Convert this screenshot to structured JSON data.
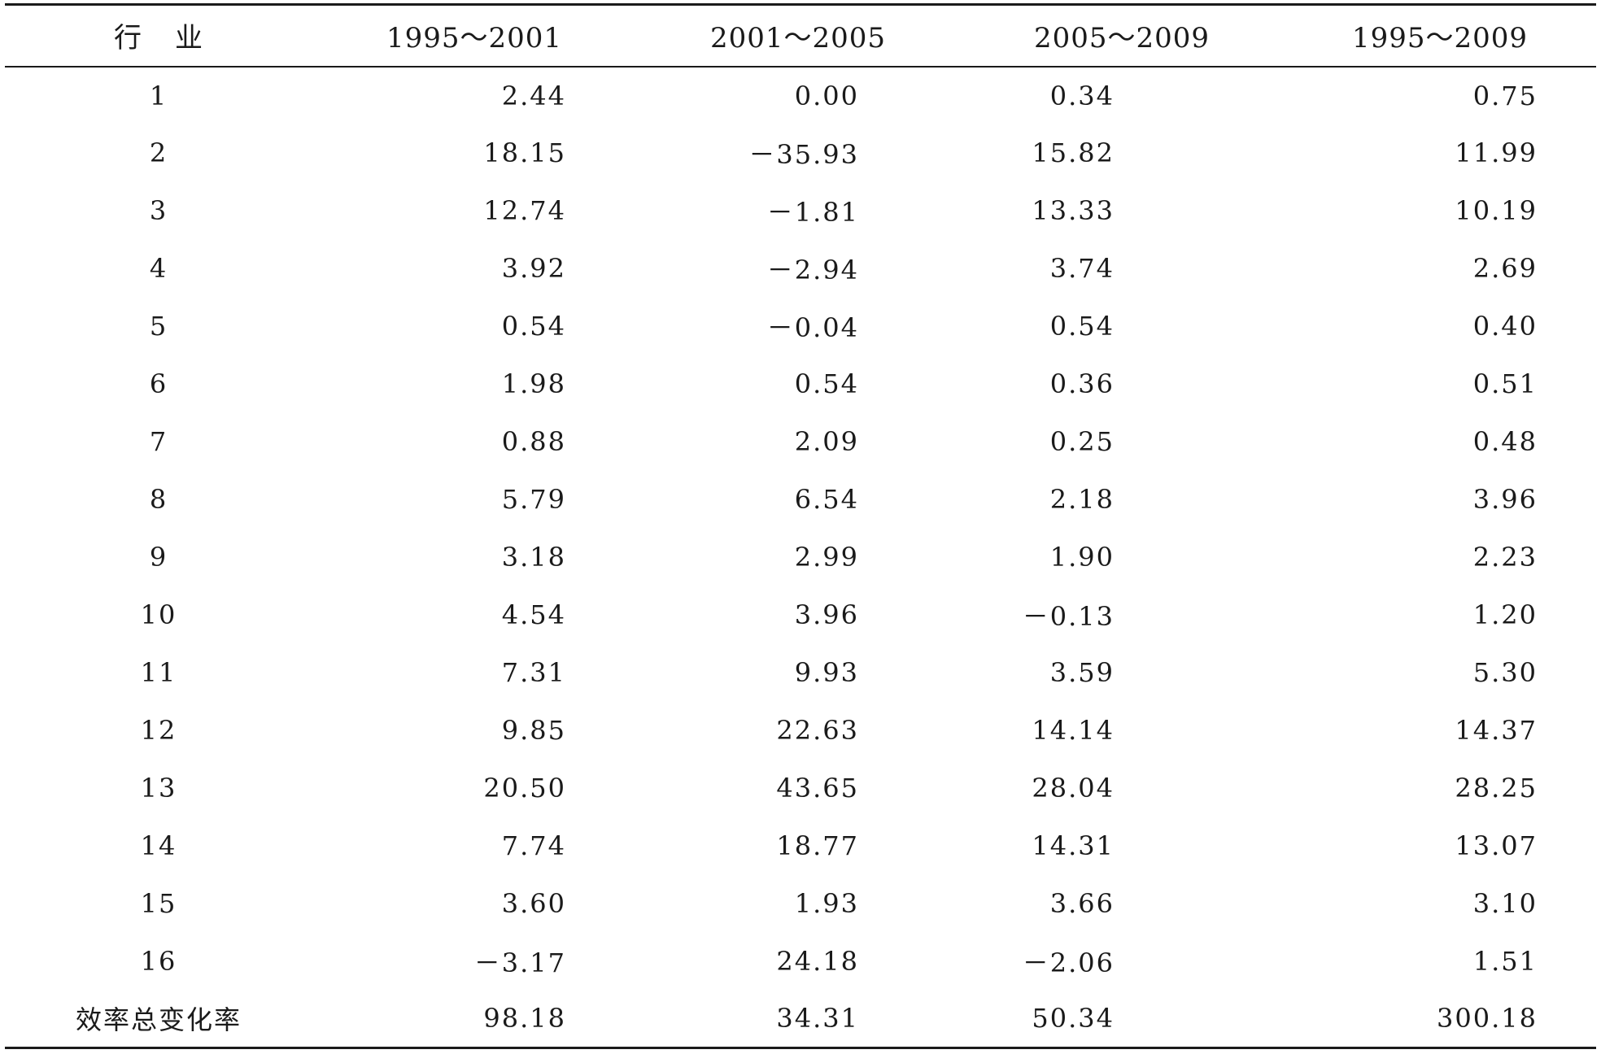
{
  "table": {
    "headers": [
      "行业",
      "1995～2001",
      "2001～2005",
      "2005～2009",
      "1995～2009"
    ],
    "header_industry_chars": [
      "行",
      "业"
    ],
    "rows": [
      {
        "industry": "1",
        "v": [
          "2.44",
          "0.00",
          "0.34",
          "0.75"
        ]
      },
      {
        "industry": "2",
        "v": [
          "18.15",
          "－35.93",
          "15.82",
          "11.99"
        ]
      },
      {
        "industry": "3",
        "v": [
          "12.74",
          "－1.81",
          "13.33",
          "10.19"
        ]
      },
      {
        "industry": "4",
        "v": [
          "3.92",
          "－2.94",
          "3.74",
          "2.69"
        ]
      },
      {
        "industry": "5",
        "v": [
          "0.54",
          "－0.04",
          "0.54",
          "0.40"
        ]
      },
      {
        "industry": "6",
        "v": [
          "1.98",
          "0.54",
          "0.36",
          "0.51"
        ]
      },
      {
        "industry": "7",
        "v": [
          "0.88",
          "2.09",
          "0.25",
          "0.48"
        ]
      },
      {
        "industry": "8",
        "v": [
          "5.79",
          "6.54",
          "2.18",
          "3.96"
        ]
      },
      {
        "industry": "9",
        "v": [
          "3.18",
          "2.99",
          "1.90",
          "2.23"
        ]
      },
      {
        "industry": "10",
        "v": [
          "4.54",
          "3.96",
          "－0.13",
          "1.20"
        ]
      },
      {
        "industry": "11",
        "v": [
          "7.31",
          "9.93",
          "3.59",
          "5.30"
        ]
      },
      {
        "industry": "12",
        "v": [
          "9.85",
          "22.63",
          "14.14",
          "14.37"
        ]
      },
      {
        "industry": "13",
        "v": [
          "20.50",
          "43.65",
          "28.04",
          "28.25"
        ]
      },
      {
        "industry": "14",
        "v": [
          "7.74",
          "18.77",
          "14.31",
          "13.07"
        ]
      },
      {
        "industry": "15",
        "v": [
          "3.60",
          "1.93",
          "3.66",
          "3.10"
        ]
      },
      {
        "industry": "16",
        "v": [
          "－3.17",
          "24.18",
          "－2.06",
          "1.51"
        ]
      },
      {
        "industry": "效率总变化率",
        "v": [
          "98.18",
          "34.31",
          "50.34",
          "300.18"
        ]
      }
    ]
  }
}
